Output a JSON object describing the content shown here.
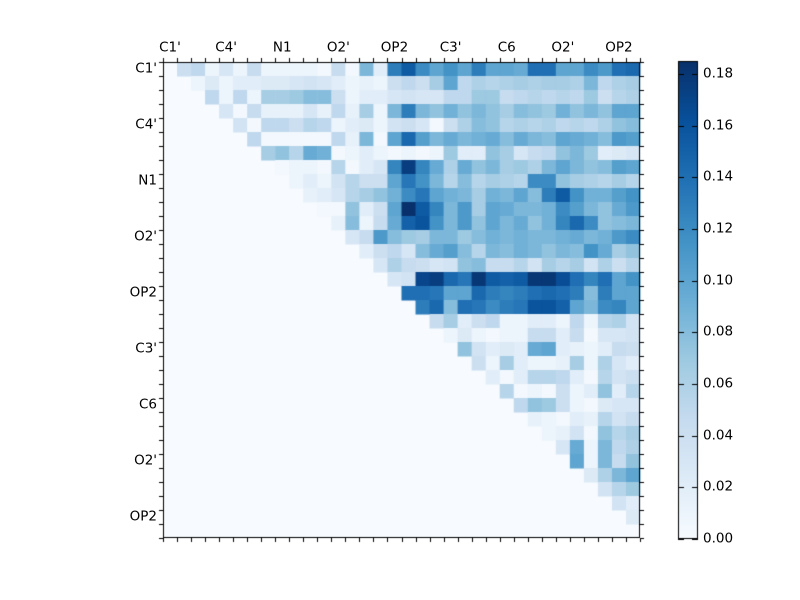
{
  "chart_data": {
    "type": "heatmap",
    "title": "",
    "colormap": "Blues",
    "vmin": 0.0,
    "vmax": 0.185,
    "n": 34,
    "grid": false,
    "triangle": "upper",
    "axis_group_labels": [
      "C1'",
      "C4'",
      "N1",
      "O2'",
      "OP2",
      "C3'",
      "C6",
      "O2'",
      "OP2"
    ],
    "label_every_cells": 4,
    "x_tick_labels": [
      "C1'",
      "C4'",
      "N1",
      "O2'",
      "OP2",
      "C3'",
      "C6",
      "O2'",
      "OP2"
    ],
    "y_tick_labels": [
      "C1'",
      "C4'",
      "N1",
      "O2'",
      "OP2",
      "C3'",
      "C6",
      "O2'",
      "OP2"
    ],
    "colorbar": {
      "position": "right",
      "tick_values": [
        0.0,
        0.02,
        0.04,
        0.06,
        0.08,
        0.1,
        0.12,
        0.14,
        0.16,
        0.18
      ],
      "tick_labels": [
        "0.00",
        "0.02",
        "0.04",
        "0.06",
        "0.08",
        "0.10",
        "0.12",
        "0.14",
        "0.16",
        "0.18"
      ]
    },
    "colors": {
      "background_zero": "#f7fbff",
      "frame": "#000000",
      "figure_background": "#ffffff"
    },
    "matrix": [
      [
        0,
        0.04,
        0.05,
        0.01,
        0.03,
        0.01,
        0.045,
        0.01,
        0.01,
        0.01,
        0.01,
        0.005,
        0.045,
        0.005,
        0.085,
        0.02,
        0.13,
        0.155,
        0.12,
        0.1,
        0.115,
        0.1,
        0.13,
        0.1,
        0.1,
        0.095,
        0.14,
        0.14,
        0.1,
        0.1,
        0.12,
        0.11,
        0.14,
        0.145
      ],
      [
        0,
        0,
        0.01,
        0.025,
        0.01,
        0.02,
        0.02,
        0.025,
        0.025,
        0.03,
        0.035,
        0.03,
        0.02,
        0.01,
        0.015,
        0.01,
        0.04,
        0.05,
        0.04,
        0.065,
        0.1,
        0.05,
        0.06,
        0.055,
        0.06,
        0.065,
        0.06,
        0.065,
        0.065,
        0.06,
        0.085,
        0.05,
        0.06,
        0.065
      ],
      [
        0,
        0,
        0,
        0.05,
        0.01,
        0.05,
        0.01,
        0.065,
        0.065,
        0.07,
        0.08,
        0.08,
        0.04,
        0.01,
        0.02,
        0.02,
        0.03,
        0.035,
        0.03,
        0.03,
        0.05,
        0.05,
        0.07,
        0.07,
        0.045,
        0.05,
        0.055,
        0.05,
        0.055,
        0.05,
        0.07,
        0.04,
        0.055,
        0.06
      ],
      [
        0,
        0,
        0,
        0,
        0.03,
        0.005,
        0.045,
        0.015,
        0.015,
        0.015,
        0.03,
        0.015,
        0.05,
        0.015,
        0.065,
        0.01,
        0.085,
        0.13,
        0.085,
        0.075,
        0.09,
        0.075,
        0.085,
        0.075,
        0.065,
        0.08,
        0.075,
        0.07,
        0.09,
        0.075,
        0.085,
        0.075,
        0.1,
        0.1
      ],
      [
        0,
        0,
        0,
        0,
        0,
        0.035,
        0.005,
        0.05,
        0.05,
        0.04,
        0.055,
        0.05,
        0.01,
        0.02,
        0.025,
        0.01,
        0.035,
        0.04,
        0.03,
        0.005,
        0.04,
        0.06,
        0.08,
        0.075,
        0.055,
        0.06,
        0.055,
        0.06,
        0.05,
        0.055,
        0.05,
        0.06,
        0.075,
        0.08
      ],
      [
        0,
        0,
        0,
        0,
        0,
        0,
        0.05,
        0.005,
        0.005,
        0.005,
        0.005,
        0.005,
        0.05,
        0.015,
        0.085,
        0.005,
        0.1,
        0.145,
        0.105,
        0.085,
        0.095,
        0.085,
        0.09,
        0.095,
        0.08,
        0.095,
        0.085,
        0.08,
        0.1,
        0.095,
        0.09,
        0.08,
        0.11,
        0.105
      ],
      [
        0,
        0,
        0,
        0,
        0,
        0,
        0,
        0.065,
        0.075,
        0.055,
        0.095,
        0.09,
        0.005,
        0.01,
        0.02,
        0.01,
        0.005,
        0.01,
        0.005,
        0.01,
        0.07,
        0.02,
        0.02,
        0.075,
        0.065,
        0.03,
        0.045,
        0.05,
        0.075,
        0.085,
        0.07,
        0.02,
        0.025,
        0.03
      ],
      [
        0,
        0,
        0,
        0,
        0,
        0,
        0,
        0,
        0.005,
        0.01,
        0.01,
        0.005,
        0.055,
        0.005,
        0.02,
        0.03,
        0.125,
        0.175,
        0.125,
        0.095,
        0.06,
        0.095,
        0.075,
        0.085,
        0.065,
        0.07,
        0.06,
        0.085,
        0.1,
        0.085,
        0.075,
        0.08,
        0.105,
        0.1
      ],
      [
        0,
        0,
        0,
        0,
        0,
        0,
        0,
        0,
        0,
        0.01,
        0.02,
        0.01,
        0.035,
        0.055,
        0.04,
        0.04,
        0.1,
        0.135,
        0.115,
        0.085,
        0.055,
        0.08,
        0.055,
        0.065,
        0.06,
        0.055,
        0.12,
        0.12,
        0.075,
        0.065,
        0.06,
        0.055,
        0.065,
        0.055
      ],
      [
        0,
        0,
        0,
        0,
        0,
        0,
        0,
        0,
        0,
        0,
        0.015,
        0.02,
        0.03,
        0.055,
        0.065,
        0.075,
        0.09,
        0.12,
        0.135,
        0.1,
        0.09,
        0.085,
        0.065,
        0.09,
        0.085,
        0.1,
        0.08,
        0.13,
        0.155,
        0.115,
        0.09,
        0.09,
        0.105,
        0.115
      ],
      [
        0,
        0,
        0,
        0,
        0,
        0,
        0,
        0,
        0,
        0,
        0,
        0.005,
        0.005,
        0.075,
        0.02,
        0.04,
        0.1,
        0.185,
        0.155,
        0.125,
        0.085,
        0.11,
        0.065,
        0.1,
        0.095,
        0.085,
        0.085,
        0.09,
        0.12,
        0.105,
        0.085,
        0.075,
        0.095,
        0.11
      ],
      [
        0,
        0,
        0,
        0,
        0,
        0,
        0,
        0,
        0,
        0,
        0,
        0,
        0.015,
        0.08,
        0.01,
        0.045,
        0.095,
        0.15,
        0.16,
        0.115,
        0.085,
        0.11,
        0.075,
        0.1,
        0.085,
        0.095,
        0.075,
        0.09,
        0.125,
        0.145,
        0.12,
        0.075,
        0.08,
        0.085
      ],
      [
        0,
        0,
        0,
        0,
        0,
        0,
        0,
        0,
        0,
        0,
        0,
        0,
        0,
        0.03,
        0.045,
        0.11,
        0.08,
        0.07,
        0.065,
        0.085,
        0.085,
        0.07,
        0.08,
        0.09,
        0.085,
        0.09,
        0.085,
        0.085,
        0.09,
        0.095,
        0.085,
        0.09,
        0.11,
        0.12
      ],
      [
        0,
        0,
        0,
        0,
        0,
        0,
        0,
        0,
        0,
        0,
        0,
        0,
        0,
        0,
        0.02,
        0.04,
        0.05,
        0.03,
        0.08,
        0.095,
        0.105,
        0.08,
        0.055,
        0.085,
        0.08,
        0.09,
        0.085,
        0.075,
        0.085,
        0.08,
        0.115,
        0.095,
        0.065,
        0.075
      ],
      [
        0,
        0,
        0,
        0,
        0,
        0,
        0,
        0,
        0,
        0,
        0,
        0,
        0,
        0,
        0,
        0.03,
        0.06,
        0.045,
        0.04,
        0.03,
        0.035,
        0.075,
        0.08,
        0.045,
        0.045,
        0.055,
        0.035,
        0.065,
        0.055,
        0.065,
        0.035,
        0.06,
        0.04,
        0.055
      ],
      [
        0,
        0,
        0,
        0,
        0,
        0,
        0,
        0,
        0,
        0,
        0,
        0,
        0,
        0,
        0,
        0,
        0.03,
        0.035,
        0.17,
        0.175,
        0.145,
        0.135,
        0.18,
        0.155,
        0.15,
        0.155,
        0.18,
        0.18,
        0.165,
        0.14,
        0.125,
        0.14,
        0.1,
        0.115
      ],
      [
        0,
        0,
        0,
        0,
        0,
        0,
        0,
        0,
        0,
        0,
        0,
        0,
        0,
        0,
        0,
        0,
        0,
        0.14,
        0.14,
        0.135,
        0.1,
        0.1,
        0.145,
        0.13,
        0.125,
        0.13,
        0.14,
        0.145,
        0.14,
        0.13,
        0.08,
        0.13,
        0.1,
        0.1
      ],
      [
        0,
        0,
        0,
        0,
        0,
        0,
        0,
        0,
        0,
        0,
        0,
        0,
        0,
        0,
        0,
        0,
        0,
        0,
        0.13,
        0.145,
        0.08,
        0.14,
        0.135,
        0.12,
        0.13,
        0.135,
        0.16,
        0.16,
        0.15,
        0.1,
        0.085,
        0.12,
        0.125,
        0.1
      ],
      [
        0,
        0,
        0,
        0,
        0,
        0,
        0,
        0,
        0,
        0,
        0,
        0,
        0,
        0,
        0,
        0,
        0,
        0,
        0,
        0.045,
        0.065,
        0.02,
        0.04,
        0.05,
        0.01,
        0.01,
        0.02,
        0.02,
        0.01,
        0.05,
        0.01,
        0.055,
        0.06,
        0.035
      ],
      [
        0,
        0,
        0,
        0,
        0,
        0,
        0,
        0,
        0,
        0,
        0,
        0,
        0,
        0,
        0,
        0,
        0,
        0,
        0,
        0,
        0.01,
        0.025,
        0.01,
        0.005,
        0.01,
        0.01,
        0.045,
        0.045,
        0.02,
        0.045,
        0.005,
        0.03,
        0.03,
        0.035
      ],
      [
        0,
        0,
        0,
        0,
        0,
        0,
        0,
        0,
        0,
        0,
        0,
        0,
        0,
        0,
        0,
        0,
        0,
        0,
        0,
        0,
        0,
        0.075,
        0.035,
        0.02,
        0.025,
        0.02,
        0.095,
        0.1,
        0.02,
        0.015,
        0.01,
        0.02,
        0.045,
        0.04
      ],
      [
        0,
        0,
        0,
        0,
        0,
        0,
        0,
        0,
        0,
        0,
        0,
        0,
        0,
        0,
        0,
        0,
        0,
        0,
        0,
        0,
        0,
        0,
        0.04,
        0.01,
        0.065,
        0.02,
        0.01,
        0.01,
        0.015,
        0.065,
        0.01,
        0.06,
        0.03,
        0.02
      ],
      [
        0,
        0,
        0,
        0,
        0,
        0,
        0,
        0,
        0,
        0,
        0,
        0,
        0,
        0,
        0,
        0,
        0,
        0,
        0,
        0,
        0,
        0,
        0,
        0.02,
        0.005,
        0.02,
        0.055,
        0.055,
        0.05,
        0.02,
        0.005,
        0.055,
        0.035,
        0.04
      ],
      [
        0,
        0,
        0,
        0,
        0,
        0,
        0,
        0,
        0,
        0,
        0,
        0,
        0,
        0,
        0,
        0,
        0,
        0,
        0,
        0,
        0,
        0,
        0,
        0,
        0.055,
        0.005,
        0.01,
        0.005,
        0.04,
        0.01,
        0.02,
        0.075,
        0.02,
        0.055
      ],
      [
        0,
        0,
        0,
        0,
        0,
        0,
        0,
        0,
        0,
        0,
        0,
        0,
        0,
        0,
        0,
        0,
        0,
        0,
        0,
        0,
        0,
        0,
        0,
        0,
        0,
        0.05,
        0.075,
        0.07,
        0.04,
        0.01,
        0.005,
        0.025,
        0.03,
        0.03
      ],
      [
        0,
        0,
        0,
        0,
        0,
        0,
        0,
        0,
        0,
        0,
        0,
        0,
        0,
        0,
        0,
        0,
        0,
        0,
        0,
        0,
        0,
        0,
        0,
        0,
        0,
        0,
        0.015,
        0.01,
        0.005,
        0.02,
        0.015,
        0.055,
        0.035,
        0.045
      ],
      [
        0,
        0,
        0,
        0,
        0,
        0,
        0,
        0,
        0,
        0,
        0,
        0,
        0,
        0,
        0,
        0,
        0,
        0,
        0,
        0,
        0,
        0,
        0,
        0,
        0,
        0,
        0,
        0.01,
        0.015,
        0.035,
        0.005,
        0.075,
        0.055,
        0.065
      ],
      [
        0,
        0,
        0,
        0,
        0,
        0,
        0,
        0,
        0,
        0,
        0,
        0,
        0,
        0,
        0,
        0,
        0,
        0,
        0,
        0,
        0,
        0,
        0,
        0,
        0,
        0,
        0,
        0,
        0.03,
        0.095,
        0.01,
        0.085,
        0.05,
        0.06
      ],
      [
        0,
        0,
        0,
        0,
        0,
        0,
        0,
        0,
        0,
        0,
        0,
        0,
        0,
        0,
        0,
        0,
        0,
        0,
        0,
        0,
        0,
        0,
        0,
        0,
        0,
        0,
        0,
        0,
        0,
        0.1,
        0.01,
        0.085,
        0.045,
        0.075
      ],
      [
        0,
        0,
        0,
        0,
        0,
        0,
        0,
        0,
        0,
        0,
        0,
        0,
        0,
        0,
        0,
        0,
        0,
        0,
        0,
        0,
        0,
        0,
        0,
        0,
        0,
        0,
        0,
        0,
        0,
        0,
        0.025,
        0.06,
        0.085,
        0.1
      ],
      [
        0,
        0,
        0,
        0,
        0,
        0,
        0,
        0,
        0,
        0,
        0,
        0,
        0,
        0,
        0,
        0,
        0,
        0,
        0,
        0,
        0,
        0,
        0,
        0,
        0,
        0,
        0,
        0,
        0,
        0,
        0,
        0.035,
        0.055,
        0.07
      ],
      [
        0,
        0,
        0,
        0,
        0,
        0,
        0,
        0,
        0,
        0,
        0,
        0,
        0,
        0,
        0,
        0,
        0,
        0,
        0,
        0,
        0,
        0,
        0,
        0,
        0,
        0,
        0,
        0,
        0,
        0,
        0,
        0,
        0.035,
        0.02
      ],
      [
        0,
        0,
        0,
        0,
        0,
        0,
        0,
        0,
        0,
        0,
        0,
        0,
        0,
        0,
        0,
        0,
        0,
        0,
        0,
        0,
        0,
        0,
        0,
        0,
        0,
        0,
        0,
        0,
        0,
        0,
        0,
        0,
        0,
        0.025
      ],
      [
        0,
        0,
        0,
        0,
        0,
        0,
        0,
        0,
        0,
        0,
        0,
        0,
        0,
        0,
        0,
        0,
        0,
        0,
        0,
        0,
        0,
        0,
        0,
        0,
        0,
        0,
        0,
        0,
        0,
        0,
        0,
        0,
        0,
        0
      ]
    ]
  }
}
